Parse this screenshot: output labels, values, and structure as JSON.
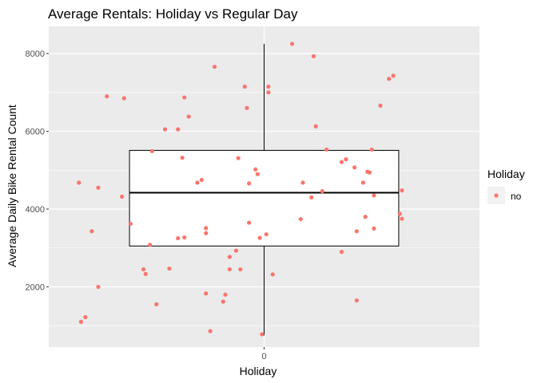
{
  "chart_data": {
    "type": "scatter",
    "title": "Average Rentals: Holiday vs Regular Day",
    "xlabel": "Holiday",
    "ylabel": "Average Daily Bike Rental Count",
    "x_categories": [
      "0"
    ],
    "yticks": [
      2000,
      4000,
      6000,
      8000
    ],
    "ylim": [
      450,
      8700
    ],
    "grid": true,
    "panel_background": "#ebebeb",
    "point_color": "#f8766d",
    "legend": {
      "title": "Holiday",
      "position": "right",
      "entries": [
        {
          "label": "no",
          "color": "#f8766d"
        }
      ]
    },
    "boxplot": {
      "category": "0",
      "min": 750,
      "q1": 3050,
      "median": 4420,
      "q3": 5510,
      "max": 8250
    },
    "points": [
      {
        "x": -0.85,
        "y": 1100
      },
      {
        "x": -0.83,
        "y": 1220
      },
      {
        "x": -0.77,
        "y": 2000
      },
      {
        "x": -0.8,
        "y": 3430
      },
      {
        "x": -0.77,
        "y": 4550
      },
      {
        "x": -0.86,
        "y": 4680
      },
      {
        "x": -0.73,
        "y": 6900
      },
      {
        "x": -0.65,
        "y": 6850
      },
      {
        "x": -0.66,
        "y": 4320
      },
      {
        "x": -0.62,
        "y": 3620
      },
      {
        "x": -0.56,
        "y": 2450
      },
      {
        "x": -0.55,
        "y": 2330
      },
      {
        "x": -0.53,
        "y": 3080
      },
      {
        "x": -0.52,
        "y": 5490
      },
      {
        "x": -0.5,
        "y": 1550
      },
      {
        "x": -0.46,
        "y": 6050
      },
      {
        "x": -0.44,
        "y": 2470
      },
      {
        "x": -0.4,
        "y": 6050
      },
      {
        "x": -0.4,
        "y": 3250
      },
      {
        "x": -0.38,
        "y": 5320
      },
      {
        "x": -0.37,
        "y": 6870
      },
      {
        "x": -0.37,
        "y": 3270
      },
      {
        "x": -0.35,
        "y": 6380
      },
      {
        "x": -0.31,
        "y": 4680
      },
      {
        "x": -0.29,
        "y": 4750
      },
      {
        "x": -0.27,
        "y": 3510
      },
      {
        "x": -0.27,
        "y": 3380
      },
      {
        "x": -0.27,
        "y": 1830
      },
      {
        "x": -0.25,
        "y": 860
      },
      {
        "x": -0.23,
        "y": 7660
      },
      {
        "x": -0.19,
        "y": 1620
      },
      {
        "x": -0.18,
        "y": 1800
      },
      {
        "x": -0.16,
        "y": 2770
      },
      {
        "x": -0.16,
        "y": 2450
      },
      {
        "x": -0.13,
        "y": 2930
      },
      {
        "x": -0.12,
        "y": 5310
      },
      {
        "x": -0.11,
        "y": 2450
      },
      {
        "x": -0.09,
        "y": 7150
      },
      {
        "x": -0.08,
        "y": 6600
      },
      {
        "x": -0.07,
        "y": 4660
      },
      {
        "x": -0.07,
        "y": 3650
      },
      {
        "x": -0.04,
        "y": 5020
      },
      {
        "x": -0.03,
        "y": 4900
      },
      {
        "x": -0.02,
        "y": 3260
      },
      {
        "x": -0.01,
        "y": 780
      },
      {
        "x": 0.01,
        "y": 3350
      },
      {
        "x": 0.02,
        "y": 7000
      },
      {
        "x": 0.02,
        "y": 7150
      },
      {
        "x": 0.04,
        "y": 2320
      },
      {
        "x": 0.13,
        "y": 8250
      },
      {
        "x": 0.17,
        "y": 3740
      },
      {
        "x": 0.18,
        "y": 4680
      },
      {
        "x": 0.22,
        "y": 4300
      },
      {
        "x": 0.23,
        "y": 7930
      },
      {
        "x": 0.24,
        "y": 6130
      },
      {
        "x": 0.27,
        "y": 4460
      },
      {
        "x": 0.29,
        "y": 5530
      },
      {
        "x": 0.36,
        "y": 5210
      },
      {
        "x": 0.36,
        "y": 2900
      },
      {
        "x": 0.38,
        "y": 5280
      },
      {
        "x": 0.42,
        "y": 5070
      },
      {
        "x": 0.43,
        "y": 1650
      },
      {
        "x": 0.43,
        "y": 3430
      },
      {
        "x": 0.46,
        "y": 4680
      },
      {
        "x": 0.47,
        "y": 3800
      },
      {
        "x": 0.48,
        "y": 4960
      },
      {
        "x": 0.49,
        "y": 4940
      },
      {
        "x": 0.5,
        "y": 5530
      },
      {
        "x": 0.51,
        "y": 4350
      },
      {
        "x": 0.51,
        "y": 3500
      },
      {
        "x": 0.54,
        "y": 6660
      },
      {
        "x": 0.58,
        "y": 7350
      },
      {
        "x": 0.6,
        "y": 7430
      },
      {
        "x": 0.63,
        "y": 3880
      },
      {
        "x": 0.64,
        "y": 4480
      },
      {
        "x": 0.64,
        "y": 3750
      }
    ]
  }
}
